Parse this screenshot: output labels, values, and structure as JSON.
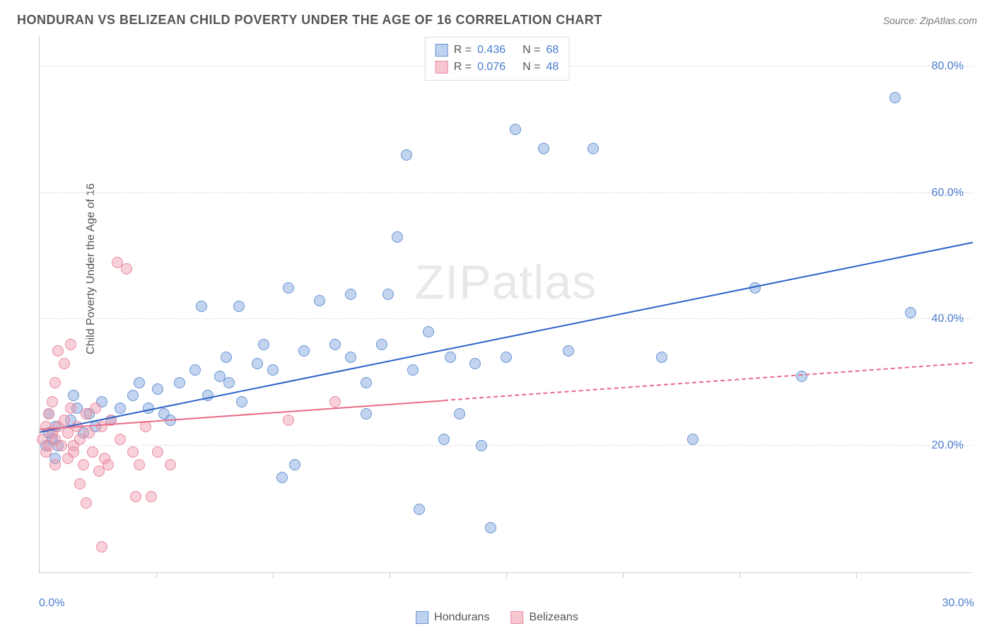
{
  "header": {
    "title": "HONDURAN VS BELIZEAN CHILD POVERTY UNDER THE AGE OF 16 CORRELATION CHART",
    "source": "Source: ZipAtlas.com"
  },
  "watermark": "ZIPatlas",
  "chart": {
    "type": "scatter",
    "ylabel": "Child Poverty Under the Age of 16",
    "label_fontsize": 16,
    "background_color": "#ffffff",
    "grid_color": "#dddddd",
    "xlim": [
      0,
      30
    ],
    "ylim": [
      0,
      85
    ],
    "xtick_labels": [
      "0.0%",
      "30.0%"
    ],
    "xtick_positions": [
      0,
      30
    ],
    "xtick_minor": [
      3.75,
      7.5,
      11.25,
      15,
      18.75,
      22.5,
      26.25
    ],
    "ytick_labels": [
      "20.0%",
      "40.0%",
      "60.0%",
      "80.0%"
    ],
    "ytick_positions": [
      20,
      40,
      60,
      80
    ],
    "marker_radius": 8,
    "series": [
      {
        "name": "Hondurans",
        "fill_color": "rgba(120,160,220,0.45)",
        "stroke_color": "#6a95d4",
        "legend_fill": "#bcd2ef",
        "legend_stroke": "#6a95d4",
        "line_color": "#2d62c8",
        "r": "0.436",
        "n": "68",
        "trend": {
          "x1": 0,
          "y1": 22,
          "x2": 30,
          "y2": 52,
          "solid_until": 30
        },
        "points": [
          [
            0.2,
            20
          ],
          [
            0.3,
            22
          ],
          [
            0.4,
            21
          ],
          [
            0.3,
            25
          ],
          [
            0.5,
            23
          ],
          [
            0.6,
            20
          ],
          [
            0.5,
            18
          ],
          [
            1.0,
            24
          ],
          [
            1.2,
            26
          ],
          [
            1.4,
            22
          ],
          [
            1.1,
            28
          ],
          [
            1.6,
            25
          ],
          [
            1.8,
            23
          ],
          [
            2.0,
            27
          ],
          [
            2.3,
            24
          ],
          [
            2.6,
            26
          ],
          [
            3.0,
            28
          ],
          [
            3.2,
            30
          ],
          [
            3.5,
            26
          ],
          [
            3.8,
            29
          ],
          [
            4.0,
            25
          ],
          [
            4.2,
            24
          ],
          [
            4.5,
            30
          ],
          [
            5.0,
            32
          ],
          [
            5.2,
            42
          ],
          [
            5.4,
            28
          ],
          [
            5.8,
            31
          ],
          [
            6.0,
            34
          ],
          [
            6.1,
            30
          ],
          [
            6.4,
            42
          ],
          [
            6.5,
            27
          ],
          [
            7.0,
            33
          ],
          [
            7.2,
            36
          ],
          [
            7.5,
            32
          ],
          [
            7.8,
            15
          ],
          [
            8.0,
            45
          ],
          [
            8.2,
            17
          ],
          [
            8.5,
            35
          ],
          [
            9.0,
            43
          ],
          [
            9.5,
            36
          ],
          [
            10.0,
            34
          ],
          [
            10.0,
            44
          ],
          [
            10.5,
            25
          ],
          [
            10.5,
            30
          ],
          [
            11.0,
            36
          ],
          [
            11.2,
            44
          ],
          [
            11.5,
            53
          ],
          [
            11.8,
            66
          ],
          [
            12.0,
            32
          ],
          [
            12.2,
            10
          ],
          [
            12.5,
            38
          ],
          [
            13.0,
            21
          ],
          [
            13.2,
            34
          ],
          [
            13.5,
            25
          ],
          [
            14.0,
            33
          ],
          [
            14.2,
            20
          ],
          [
            14.5,
            7
          ],
          [
            15.0,
            34
          ],
          [
            15.3,
            70
          ],
          [
            16.2,
            67
          ],
          [
            17.0,
            35
          ],
          [
            17.8,
            67
          ],
          [
            20.0,
            34
          ],
          [
            21.0,
            21
          ],
          [
            23.0,
            45
          ],
          [
            24.5,
            31
          ],
          [
            27.5,
            75
          ],
          [
            28.0,
            41
          ]
        ]
      },
      {
        "name": "Belizeans",
        "fill_color": "rgba(240,150,170,0.45)",
        "stroke_color": "#e88ca0",
        "legend_fill": "#f7c6d1",
        "legend_stroke": "#e88ca0",
        "line_color": "#e86b87",
        "r": "0.076",
        "n": "48",
        "trend": {
          "x1": 0,
          "y1": 22.5,
          "x2": 30,
          "y2": 33,
          "solid_until": 13
        },
        "points": [
          [
            0.1,
            21
          ],
          [
            0.2,
            23
          ],
          [
            0.2,
            19
          ],
          [
            0.3,
            20
          ],
          [
            0.3,
            25
          ],
          [
            0.4,
            22
          ],
          [
            0.4,
            27
          ],
          [
            0.5,
            21
          ],
          [
            0.5,
            30
          ],
          [
            0.5,
            17
          ],
          [
            0.6,
            23
          ],
          [
            0.6,
            35
          ],
          [
            0.7,
            20
          ],
          [
            0.8,
            24
          ],
          [
            0.8,
            33
          ],
          [
            0.9,
            22
          ],
          [
            0.9,
            18
          ],
          [
            1.0,
            26
          ],
          [
            1.0,
            36
          ],
          [
            1.1,
            20
          ],
          [
            1.1,
            19
          ],
          [
            1.2,
            23
          ],
          [
            1.3,
            21
          ],
          [
            1.3,
            14
          ],
          [
            1.4,
            17
          ],
          [
            1.5,
            25
          ],
          [
            1.5,
            11
          ],
          [
            1.6,
            22
          ],
          [
            1.7,
            19
          ],
          [
            1.8,
            26
          ],
          [
            1.9,
            16
          ],
          [
            2.0,
            4
          ],
          [
            2.0,
            23
          ],
          [
            2.1,
            18
          ],
          [
            2.2,
            17
          ],
          [
            2.3,
            24
          ],
          [
            2.5,
            49
          ],
          [
            2.6,
            21
          ],
          [
            2.8,
            48
          ],
          [
            3.0,
            19
          ],
          [
            3.1,
            12
          ],
          [
            3.2,
            17
          ],
          [
            3.4,
            23
          ],
          [
            3.6,
            12
          ],
          [
            3.8,
            19
          ],
          [
            4.2,
            17
          ],
          [
            8.0,
            24
          ],
          [
            9.5,
            27
          ]
        ]
      }
    ]
  },
  "legend_bottom_labels": {
    "hondurans": "Hondurans",
    "belizeans": "Belizeans"
  }
}
